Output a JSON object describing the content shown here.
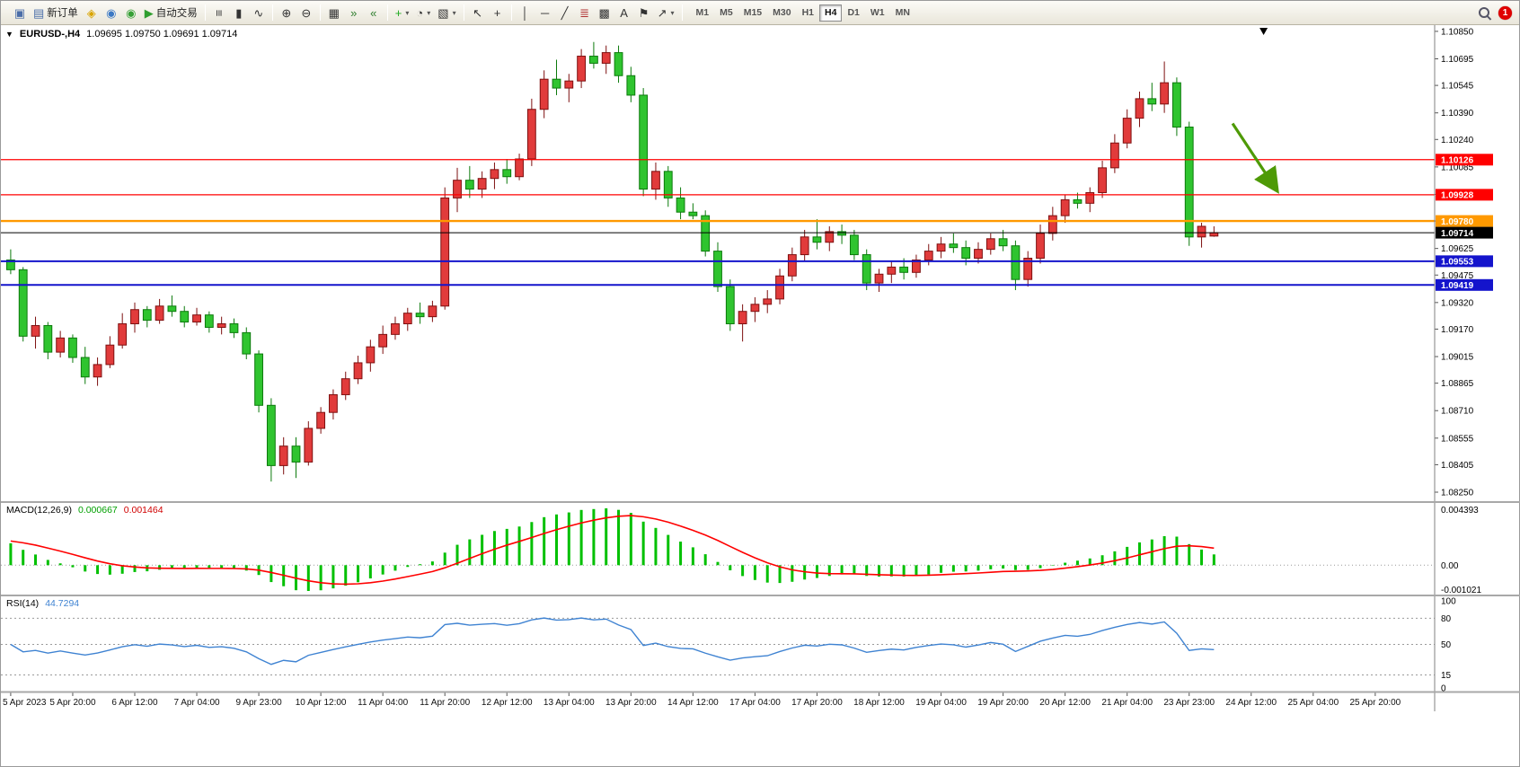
{
  "window": {
    "symbol_label": "EURUSD-,H4",
    "ohlc": "1.09695 1.09750 1.09691 1.09714",
    "one_click_arrow": "▼"
  },
  "toolbar": {
    "buttons_left": [
      {
        "name": "new-chart-button",
        "glyph": "▣",
        "color": "#4a6da8"
      },
      {
        "name": "new-order-button",
        "glyph": "▤",
        "color": "#4a6da8",
        "label": "新订单"
      },
      {
        "name": "metaeditor-button",
        "glyph": "◈",
        "color": "#d9a400"
      },
      {
        "name": "mql5-community-button",
        "glyph": "◉",
        "color": "#3b78c4"
      },
      {
        "name": "market-button",
        "glyph": "◉",
        "color": "#35a035"
      },
      {
        "name": "autotrading-button",
        "glyph": "▶",
        "color": "#2f9e2f",
        "label": "自动交易"
      },
      {
        "sep": true
      },
      {
        "name": "bar-chart-button",
        "glyph": "≡",
        "rot": true
      },
      {
        "name": "candlestick-chart-button",
        "glyph": "▮",
        "color": "#333333"
      },
      {
        "name": "line-chart-button",
        "glyph": "∿",
        "color": "#333333"
      },
      {
        "sep": true
      },
      {
        "name": "zoom-in-button",
        "glyph": "⊕"
      },
      {
        "name": "zoom-out-button",
        "glyph": "⊖"
      },
      {
        "sep": true
      },
      {
        "name": "tile-windows-button",
        "glyph": "▦"
      },
      {
        "name": "auto-scroll-button",
        "glyph": "»",
        "color": "#2f7e2f"
      },
      {
        "name": "chart-shift-button",
        "glyph": "«",
        "color": "#2f7e2f"
      },
      {
        "sep": true
      },
      {
        "name": "indicators-button",
        "glyph": "+",
        "color": "#1faa1f",
        "dropdown": true
      },
      {
        "name": "periods-button",
        "glyph": "◔",
        "dropdown": true
      },
      {
        "name": "templates-button",
        "glyph": "▧",
        "dropdown": true
      },
      {
        "sep": true
      },
      {
        "name": "cursor-button",
        "glyph": "↖"
      },
      {
        "name": "crosshair-button",
        "glyph": "+"
      },
      {
        "sep": true
      },
      {
        "name": "vertical-line-button",
        "glyph": "│"
      },
      {
        "name": "horizontal-line-button",
        "glyph": "─"
      },
      {
        "name": "trendline-button",
        "glyph": "╱"
      },
      {
        "name": "fibonacci-button",
        "glyph": "≣",
        "color": "#b03030"
      },
      {
        "name": "shapes-button",
        "glyph": "▩"
      },
      {
        "name": "text-button",
        "glyph": "A"
      },
      {
        "name": "label-button",
        "glyph": "⚑"
      },
      {
        "name": "arrows-button",
        "glyph": "↗",
        "dropdown": true
      },
      {
        "sep": true
      }
    ],
    "timeframes": [
      "M1",
      "M5",
      "M15",
      "M30",
      "H1",
      "H4",
      "D1",
      "W1",
      "MN"
    ],
    "active_timeframe": "H4",
    "notification_badge": "1"
  },
  "chart_data": {
    "type": "candlestick",
    "symbol": "EURUSD-",
    "timeframe": "H4",
    "ohlc_display": {
      "open": "1.09695",
      "high": "1.09750",
      "low": "1.09691",
      "close": "1.09714"
    },
    "total_slots": 115,
    "label_every_n_candles": 5,
    "price_axis": {
      "top_price": 1.10885,
      "bottom_price": 1.0825,
      "ticks": [
        "1.10850",
        "1.10695",
        "1.10545",
        "1.10390",
        "1.10240",
        "1.10085",
        "1.09930",
        "1.09780",
        "1.09625",
        "1.09475",
        "1.09320",
        "1.09170",
        "1.09015",
        "1.08865",
        "1.08710",
        "1.08555",
        "1.08405",
        "1.08250"
      ]
    },
    "colors": {
      "bull_fill": "#e13b3b",
      "bull_stroke": "#7e1010",
      "bear_fill": "#2fc42f",
      "bear_stroke": "#0c7a0c",
      "background": "#ffffff",
      "axis_text": "#000000"
    },
    "hlines": [
      {
        "name": "resistance-line-1",
        "price": 1.10126,
        "label": "1.10126",
        "color": "#ff0000",
        "width": 1.2
      },
      {
        "name": "resistance-line-2",
        "price": 1.09928,
        "label": "1.09928",
        "color": "#ff0000",
        "width": 1.2
      },
      {
        "name": "pivot-line-orange",
        "price": 1.0978,
        "label": "1.09780",
        "color": "#ff9900",
        "width": 2.4
      },
      {
        "name": "current-price-line",
        "price": 1.09714,
        "label": "1.09714",
        "color": "#000000",
        "width": 1
      },
      {
        "name": "support-line-1",
        "price": 1.09553,
        "label": "1.09553",
        "color": "#1414cc",
        "width": 2
      },
      {
        "name": "support-line-2",
        "price": 1.09419,
        "label": "1.09419",
        "color": "#1414cc",
        "width": 2
      }
    ],
    "shift_marker_slot": 101,
    "arrow_annotation": {
      "slot_from": 98.5,
      "price_from": 1.1033,
      "slot_to": 102,
      "price_to": 1.0996,
      "color": "#4e9a06"
    },
    "candles": [
      [
        1.0956,
        1.0962,
        1.0948,
        1.09505
      ],
      [
        1.09505,
        1.0952,
        1.091,
        1.0913
      ],
      [
        1.0913,
        1.0924,
        1.0906,
        1.0919
      ],
      [
        1.0919,
        1.0921,
        1.09,
        1.0904
      ],
      [
        1.0904,
        1.0916,
        1.0901,
        1.0912
      ],
      [
        1.0912,
        1.0914,
        1.0898,
        1.0901
      ],
      [
        1.0901,
        1.0907,
        1.0886,
        1.089
      ],
      [
        1.089,
        1.0901,
        1.0885,
        1.0897
      ],
      [
        1.0897,
        1.0913,
        1.0895,
        1.0908
      ],
      [
        1.0908,
        1.0926,
        1.0906,
        1.092
      ],
      [
        1.092,
        1.0932,
        1.0915,
        1.0928
      ],
      [
        1.0928,
        1.093,
        1.0918,
        1.0922
      ],
      [
        1.0922,
        1.0934,
        1.092,
        1.093
      ],
      [
        1.093,
        1.0936,
        1.0924,
        1.0927
      ],
      [
        1.0927,
        1.093,
        1.0918,
        1.0921
      ],
      [
        1.0921,
        1.0929,
        1.0919,
        1.0925
      ],
      [
        1.0925,
        1.0927,
        1.0915,
        1.0918
      ],
      [
        1.0918,
        1.0924,
        1.0914,
        1.092
      ],
      [
        1.092,
        1.0923,
        1.0912,
        1.0915
      ],
      [
        1.0915,
        1.0918,
        1.09,
        1.0903
      ],
      [
        1.0903,
        1.0905,
        1.087,
        1.0874
      ],
      [
        1.0874,
        1.0878,
        1.0831,
        1.084
      ],
      [
        1.084,
        1.0856,
        1.0835,
        1.0851
      ],
      [
        1.0851,
        1.0856,
        1.0833,
        1.0842
      ],
      [
        1.0842,
        1.0865,
        1.084,
        1.0861
      ],
      [
        1.0861,
        1.0873,
        1.0858,
        1.087
      ],
      [
        1.087,
        1.0883,
        1.0866,
        1.088
      ],
      [
        1.088,
        1.0893,
        1.0877,
        1.0889
      ],
      [
        1.0889,
        1.0902,
        1.0886,
        1.0898
      ],
      [
        1.0898,
        1.0911,
        1.0893,
        1.0907
      ],
      [
        1.0907,
        1.0919,
        1.0903,
        1.0914
      ],
      [
        1.0914,
        1.0924,
        1.0911,
        1.092
      ],
      [
        1.092,
        1.0929,
        1.0916,
        1.0926
      ],
      [
        1.0926,
        1.0932,
        1.092,
        1.0924
      ],
      [
        1.0924,
        1.0933,
        1.0921,
        1.093
      ],
      [
        1.093,
        1.0997,
        1.0928,
        1.0991
      ],
      [
        1.0991,
        1.1008,
        1.0983,
        1.1001
      ],
      [
        1.1001,
        1.1009,
        1.0991,
        1.0996
      ],
      [
        1.0996,
        1.1006,
        1.0991,
        1.1002
      ],
      [
        1.1002,
        1.1011,
        1.0996,
        1.1007
      ],
      [
        1.1007,
        1.1013,
        1.0999,
        1.1003
      ],
      [
        1.1003,
        1.1016,
        1.1001,
        1.1013
      ],
      [
        1.1013,
        1.1047,
        1.1009,
        1.1041
      ],
      [
        1.1041,
        1.1063,
        1.1036,
        1.1058
      ],
      [
        1.1058,
        1.1069,
        1.1049,
        1.1053
      ],
      [
        1.1053,
        1.1061,
        1.1045,
        1.1057
      ],
      [
        1.1057,
        1.1075,
        1.1053,
        1.1071
      ],
      [
        1.1071,
        1.1079,
        1.1064,
        1.1067
      ],
      [
        1.1067,
        1.1077,
        1.1061,
        1.1073
      ],
      [
        1.1073,
        1.1077,
        1.1056,
        1.106
      ],
      [
        1.106,
        1.1065,
        1.1045,
        1.1049
      ],
      [
        1.1049,
        1.1053,
        1.0992,
        1.0996
      ],
      [
        1.0996,
        1.1011,
        1.099,
        1.1006
      ],
      [
        1.1006,
        1.1009,
        1.0986,
        1.0991
      ],
      [
        1.0991,
        1.0997,
        1.0979,
        1.0983
      ],
      [
        1.0983,
        1.0988,
        1.0979,
        1.0981
      ],
      [
        1.0981,
        1.0984,
        1.0958,
        1.0961
      ],
      [
        1.0961,
        1.0966,
        1.0938,
        1.0941
      ],
      [
        1.0941,
        1.0945,
        1.0916,
        1.092
      ],
      [
        1.092,
        1.0931,
        1.091,
        1.0927
      ],
      [
        1.0927,
        1.0935,
        1.0921,
        1.0931
      ],
      [
        1.0931,
        1.0939,
        1.0926,
        1.0934
      ],
      [
        1.0934,
        1.0951,
        1.0931,
        1.0947
      ],
      [
        1.0947,
        1.0963,
        1.0944,
        1.0959
      ],
      [
        1.0959,
        1.0973,
        1.0955,
        1.0969
      ],
      [
        1.0969,
        1.0979,
        1.0962,
        1.0966
      ],
      [
        1.0966,
        1.0975,
        1.0961,
        1.0972
      ],
      [
        1.0972,
        1.0976,
        1.0965,
        1.097
      ],
      [
        1.097,
        1.0973,
        1.0956,
        1.0959
      ],
      [
        1.0959,
        1.0962,
        1.0939,
        1.0943
      ],
      [
        1.0943,
        1.0951,
        1.0938,
        1.0948
      ],
      [
        1.0948,
        1.0955,
        1.0943,
        1.0952
      ],
      [
        1.0952,
        1.0957,
        1.0945,
        1.0949
      ],
      [
        1.0949,
        1.0959,
        1.0946,
        1.0956
      ],
      [
        1.0956,
        1.0965,
        1.0953,
        1.0961
      ],
      [
        1.0961,
        1.0969,
        1.0957,
        1.0965
      ],
      [
        1.0965,
        1.0971,
        1.096,
        1.0963
      ],
      [
        1.0963,
        1.0967,
        1.0953,
        1.0957
      ],
      [
        1.0957,
        1.0966,
        1.0954,
        1.0962
      ],
      [
        1.0962,
        1.0971,
        1.0959,
        1.0968
      ],
      [
        1.0968,
        1.0973,
        1.0961,
        1.0964
      ],
      [
        1.0964,
        1.0967,
        1.0939,
        1.0945
      ],
      [
        1.0945,
        1.0961,
        1.0941,
        1.0957
      ],
      [
        1.0957,
        1.0976,
        1.0954,
        1.0971
      ],
      [
        1.0971,
        1.0986,
        1.0967,
        1.0981
      ],
      [
        1.0981,
        1.0993,
        1.0977,
        1.099
      ],
      [
        1.099,
        1.0994,
        1.0985,
        1.0988
      ],
      [
        1.0988,
        1.0997,
        1.0983,
        1.0994
      ],
      [
        1.0994,
        1.1012,
        1.0991,
        1.1008
      ],
      [
        1.1008,
        1.1027,
        1.1005,
        1.1022
      ],
      [
        1.1022,
        1.1041,
        1.1019,
        1.1036
      ],
      [
        1.1036,
        1.1051,
        1.1031,
        1.1047
      ],
      [
        1.1047,
        1.1056,
        1.104,
        1.1044
      ],
      [
        1.1044,
        1.1068,
        1.1039,
        1.1056
      ],
      [
        1.1056,
        1.1059,
        1.1026,
        1.1031
      ],
      [
        1.1031,
        1.1034,
        1.0964,
        1.0969
      ],
      [
        1.0969,
        1.0977,
        1.0963,
        1.0975
      ],
      [
        1.09695,
        1.0975,
        1.09691,
        1.09714
      ]
    ],
    "time_labels": [
      "5 Apr 2023",
      "5 Apr 20:00",
      "6 Apr 12:00",
      "7 Apr 04:00",
      "9 Apr 23:00",
      "10 Apr 12:00",
      "11 Apr 04:00",
      "11 Apr 20:00",
      "12 Apr 12:00",
      "13 Apr 04:00",
      "13 Apr 20:00",
      "14 Apr 12:00",
      "17 Apr 04:00",
      "17 Apr 20:00",
      "18 Apr 12:00",
      "19 Apr 04:00",
      "19 Apr 20:00",
      "20 Apr 12:00",
      "21 Apr 04:00",
      "23 Apr 23:00",
      "24 Apr 12:00",
      "25 Apr 04:00",
      "25 Apr 20:00"
    ],
    "macd": {
      "label": "MACD(12,26,9)",
      "value_main": "0.000667",
      "value_signal": "0.001464",
      "axis_top": "0.004393",
      "axis_zero": "0.00",
      "axis_bottom": "-0.001021",
      "histogram_color": "#00c000",
      "signal_color": "#ff0000"
    },
    "rsi": {
      "label": "RSI(14)",
      "value": "44.7294",
      "line_color": "#3f83d2",
      "axis": [
        {
          "v": 100,
          "label": "100",
          "line": false
        },
        {
          "v": 80,
          "label": "80",
          "line": true
        },
        {
          "v": 50,
          "label": "50",
          "line": true
        },
        {
          "v": 15,
          "label": "15",
          "line": true
        },
        {
          "v": 0,
          "label": "0",
          "line": false
        }
      ]
    }
  }
}
